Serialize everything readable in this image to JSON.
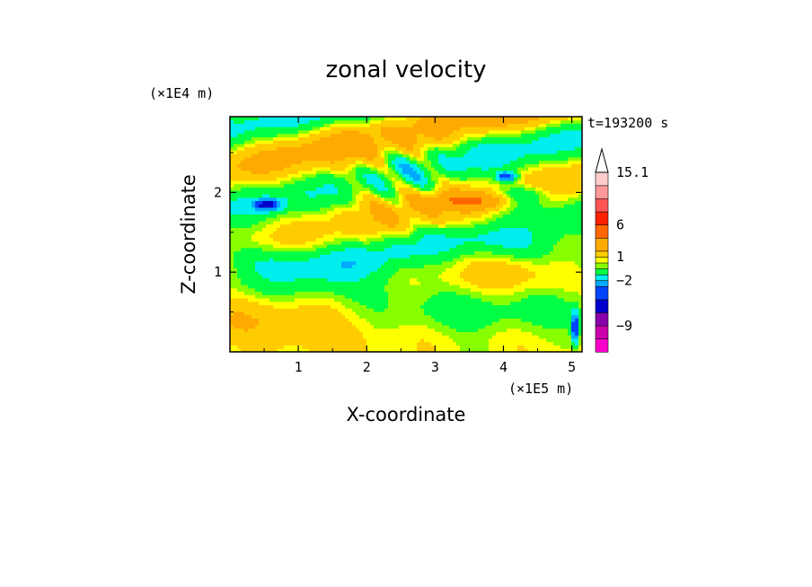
{
  "chart_data": {
    "type": "heatmap",
    "title": "zonal velocity",
    "xlabel": "X-coordinate",
    "ylabel": "Z-coordinate",
    "x_scale_label": "(×1E5 m)",
    "y_scale_label": "(×1E4 m)",
    "time_label": "t=193200 s",
    "x_ticks": [
      "1",
      "2",
      "3",
      "4",
      "5"
    ],
    "y_ticks": [
      "1",
      "2"
    ],
    "xlim": [
      0,
      5.15
    ],
    "ylim": [
      0,
      2.95
    ],
    "colorbar": {
      "labels": [
        "15.1",
        "6",
        "1",
        "−2",
        "−9"
      ],
      "levels": [
        {
          "upper": -12,
          "color": "#ff00cc"
        },
        {
          "upper": -9,
          "color": "#cc00aa"
        },
        {
          "upper": -6,
          "color": "#8800aa"
        },
        {
          "upper": -4,
          "color": "#0000cc"
        },
        {
          "upper": -3,
          "color": "#0044ff"
        },
        {
          "upper": -2,
          "color": "#00aaff"
        },
        {
          "upper": -1,
          "color": "#00eeee"
        },
        {
          "upper": 0,
          "color": "#00ff44"
        },
        {
          "upper": 0.5,
          "color": "#88ff00"
        },
        {
          "upper": 1,
          "color": "#ffff00"
        },
        {
          "upper": 2,
          "color": "#ffcc00"
        },
        {
          "upper": 4,
          "color": "#ffaa00"
        },
        {
          "upper": 6,
          "color": "#ff6600"
        },
        {
          "upper": 8,
          "color": "#ff2200"
        },
        {
          "upper": 10,
          "color": "#ff5555"
        },
        {
          "upper": 12,
          "color": "#ff9999"
        },
        {
          "upper": 15.1,
          "color": "#ffcccc"
        }
      ],
      "over_color": "#ffffff"
    },
    "field_features": [
      {
        "label": "lower yellow band",
        "x": 2.5,
        "z": 0.5,
        "value": 1.0
      },
      {
        "label": "middle green layer",
        "x": 2.5,
        "z": 1.2,
        "value": 0.0
      },
      {
        "label": "upper cyan streak",
        "x": 0.9,
        "z": 2.0,
        "value": -1.5
      },
      {
        "label": "blue core left",
        "x": 0.55,
        "z": 1.85,
        "value": -4.0
      },
      {
        "label": "blue core right",
        "x": 4.1,
        "z": 2.2,
        "value": -4.0
      },
      {
        "label": "orange band",
        "x": 3.6,
        "z": 1.9,
        "value": 3.0
      },
      {
        "label": "jet near right edge",
        "x": 5.05,
        "z": 0.3,
        "value": -5.0
      }
    ]
  }
}
